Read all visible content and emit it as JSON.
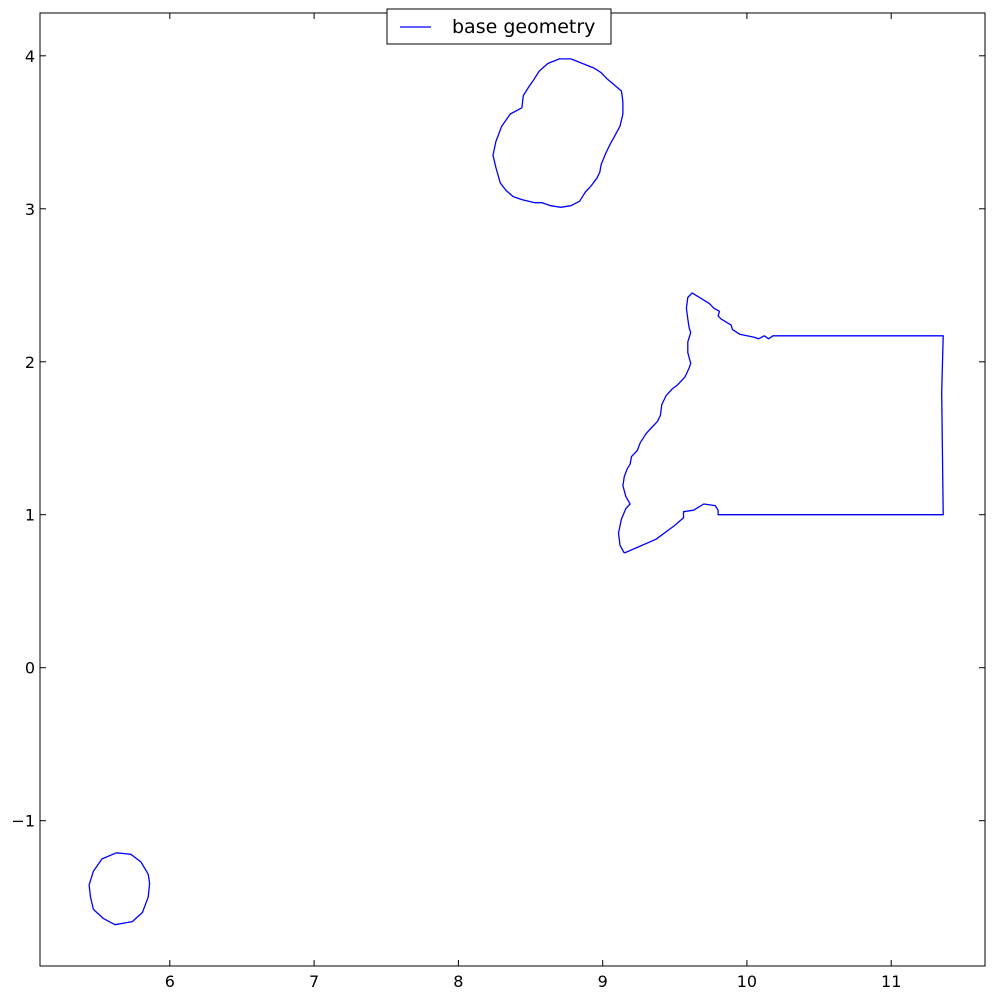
{
  "chart_data": {
    "type": "line",
    "title": "",
    "xlabel": "",
    "ylabel": "",
    "xlim": [
      5.1,
      11.65
    ],
    "ylim": [
      -1.95,
      4.28
    ],
    "xticks": [
      6,
      7,
      8,
      9,
      10,
      11
    ],
    "yticks": [
      -1,
      0,
      1,
      2,
      3,
      4
    ],
    "ytick_labels": [
      "−1",
      "0",
      "1",
      "2",
      "3",
      "4"
    ],
    "grid": false,
    "legend": {
      "position": "top-center",
      "entries": [
        "base geometry"
      ]
    },
    "series": [
      {
        "name": "base geometry",
        "color": "#0000ff",
        "parts": [
          [
            [
              8.44,
              3.66
            ],
            [
              8.45,
              3.74
            ],
            [
              8.49,
              3.8
            ],
            [
              8.52,
              3.84
            ],
            [
              8.56,
              3.9
            ],
            [
              8.62,
              3.95
            ],
            [
              8.7,
              3.98
            ],
            [
              8.78,
              3.98
            ],
            [
              8.86,
              3.95
            ],
            [
              8.94,
              3.92
            ],
            [
              8.99,
              3.89
            ],
            [
              9.03,
              3.85
            ],
            [
              9.13,
              3.77
            ],
            [
              9.14,
              3.7
            ],
            [
              9.14,
              3.62
            ],
            [
              9.12,
              3.54
            ],
            [
              9.08,
              3.47
            ],
            [
              9.05,
              3.42
            ],
            [
              9.02,
              3.36
            ],
            [
              8.99,
              3.29
            ],
            [
              8.98,
              3.24
            ],
            [
              8.96,
              3.2
            ],
            [
              8.92,
              3.15
            ],
            [
              8.88,
              3.11
            ],
            [
              8.84,
              3.05
            ],
            [
              8.78,
              3.02
            ],
            [
              8.71,
              3.01
            ],
            [
              8.64,
              3.02
            ],
            [
              8.58,
              3.04
            ],
            [
              8.53,
              3.04
            ],
            [
              8.44,
              3.06
            ],
            [
              8.38,
              3.08
            ],
            [
              8.33,
              3.12
            ],
            [
              8.29,
              3.17
            ],
            [
              8.26,
              3.27
            ],
            [
              8.24,
              3.35
            ],
            [
              8.26,
              3.44
            ],
            [
              8.3,
              3.54
            ],
            [
              8.36,
              3.62
            ],
            [
              8.44,
              3.66
            ]
          ],
          [
            [
              9.15,
              0.75
            ],
            [
              9.37,
              0.84
            ],
            [
              9.5,
              0.93
            ],
            [
              9.56,
              0.98
            ],
            [
              9.56,
              1.02
            ],
            [
              9.63,
              1.03
            ],
            [
              9.7,
              1.07
            ],
            [
              9.78,
              1.06
            ],
            [
              9.8,
              1.03
            ],
            [
              9.8,
              1.0
            ],
            [
              11.36,
              1.0
            ],
            [
              11.35,
              1.8
            ],
            [
              11.36,
              2.17
            ],
            [
              11.0,
              2.17
            ],
            [
              10.18,
              2.17
            ],
            [
              10.15,
              2.15
            ],
            [
              10.12,
              2.17
            ],
            [
              10.08,
              2.15
            ],
            [
              10.05,
              2.16
            ],
            [
              9.95,
              2.18
            ],
            [
              9.9,
              2.21
            ],
            [
              9.89,
              2.24
            ],
            [
              9.82,
              2.28
            ],
            [
              9.8,
              2.3
            ],
            [
              9.81,
              2.33
            ],
            [
              9.77,
              2.35
            ],
            [
              9.74,
              2.38
            ],
            [
              9.62,
              2.45
            ],
            [
              9.59,
              2.42
            ],
            [
              9.58,
              2.35
            ],
            [
              9.59,
              2.28
            ],
            [
              9.6,
              2.22
            ],
            [
              9.61,
              2.19
            ],
            [
              9.59,
              2.13
            ],
            [
              9.59,
              2.06
            ],
            [
              9.61,
              1.99
            ],
            [
              9.6,
              1.96
            ],
            [
              9.57,
              1.9
            ],
            [
              9.52,
              1.85
            ],
            [
              9.48,
              1.82
            ],
            [
              9.44,
              1.78
            ],
            [
              9.41,
              1.72
            ],
            [
              9.4,
              1.65
            ],
            [
              9.38,
              1.61
            ],
            [
              9.34,
              1.57
            ],
            [
              9.3,
              1.53
            ],
            [
              9.26,
              1.47
            ],
            [
              9.24,
              1.42
            ],
            [
              9.2,
              1.38
            ],
            [
              9.19,
              1.33
            ],
            [
              9.17,
              1.3
            ],
            [
              9.15,
              1.25
            ],
            [
              9.14,
              1.19
            ],
            [
              9.16,
              1.12
            ],
            [
              9.19,
              1.07
            ],
            [
              9.16,
              1.04
            ],
            [
              9.13,
              0.97
            ],
            [
              9.11,
              0.88
            ],
            [
              9.12,
              0.8
            ],
            [
              9.15,
              0.75
            ]
          ],
          [
            [
              5.63,
              -1.21
            ],
            [
              5.73,
              -1.22
            ],
            [
              5.8,
              -1.27
            ],
            [
              5.85,
              -1.35
            ],
            [
              5.86,
              -1.41
            ],
            [
              5.85,
              -1.5
            ],
            [
              5.81,
              -1.6
            ],
            [
              5.74,
              -1.66
            ],
            [
              5.62,
              -1.68
            ],
            [
              5.54,
              -1.64
            ],
            [
              5.47,
              -1.58
            ],
            [
              5.45,
              -1.5
            ],
            [
              5.44,
              -1.42
            ],
            [
              5.47,
              -1.33
            ],
            [
              5.53,
              -1.25
            ],
            [
              5.63,
              -1.21
            ]
          ]
        ]
      }
    ]
  }
}
